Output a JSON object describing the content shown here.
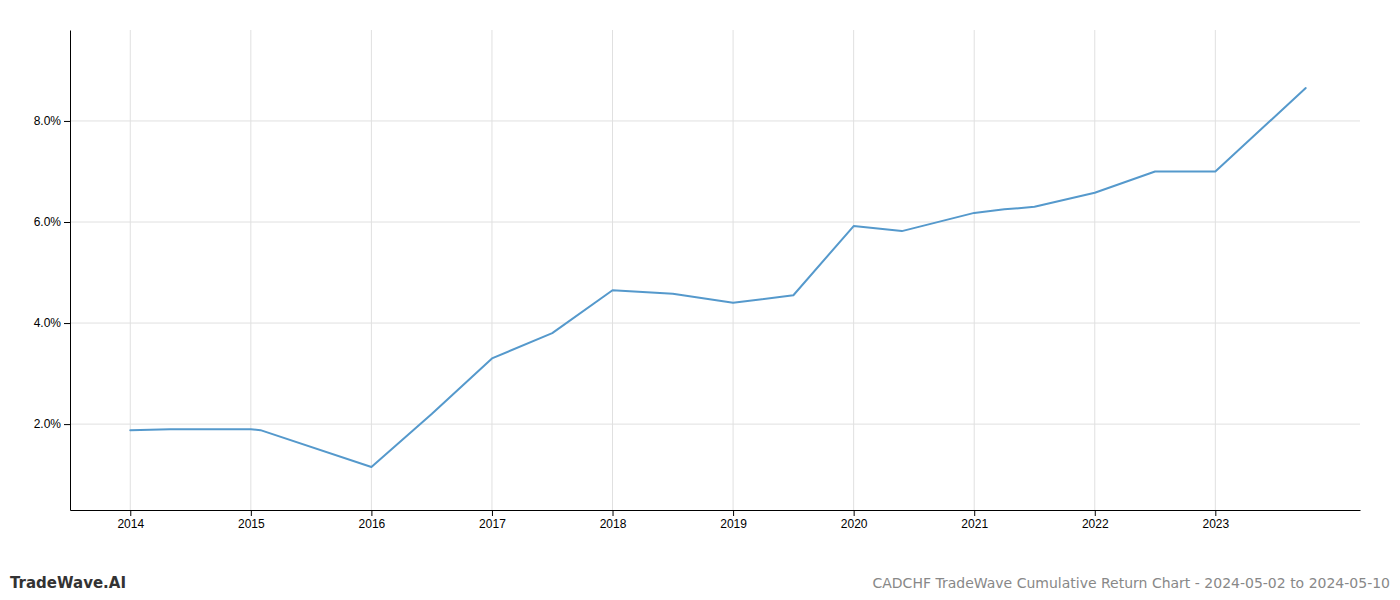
{
  "chart_data": {
    "type": "line",
    "title": "CADCHF TradeWave Cumulative Return Chart - 2024-05-02 to 2024-05-10",
    "annotations": [
      "TradeWave.AI"
    ],
    "x": [
      2014,
      2014.33,
      2015,
      2015.08,
      2016,
      2016.5,
      2017,
      2017.5,
      2018,
      2018.5,
      2019,
      2019.5,
      2020,
      2020.4,
      2021,
      2021.25,
      2021.5,
      2022,
      2022.5,
      2023,
      2023.75
    ],
    "values": [
      1.88,
      1.9,
      1.9,
      1.88,
      1.15,
      2.2,
      3.3,
      3.8,
      4.65,
      4.58,
      4.4,
      4.55,
      5.92,
      5.82,
      6.18,
      6.25,
      6.3,
      6.58,
      7.0,
      7.0,
      8.65
    ],
    "color": "#5599cc",
    "xlim": [
      2013.5,
      2024.2
    ],
    "xticks": [
      2014,
      2015,
      2016,
      2017,
      2018,
      2019,
      2020,
      2021,
      2022,
      2023
    ],
    "ylim": [
      0.3,
      9.8
    ],
    "yticks": [
      {
        "value": 2.0,
        "label": "2.0%"
      },
      {
        "value": 4.0,
        "label": "4.0%"
      },
      {
        "value": 6.0,
        "label": "6.0%"
      },
      {
        "value": 8.0,
        "label": "8.0%"
      }
    ],
    "grid": true
  }
}
